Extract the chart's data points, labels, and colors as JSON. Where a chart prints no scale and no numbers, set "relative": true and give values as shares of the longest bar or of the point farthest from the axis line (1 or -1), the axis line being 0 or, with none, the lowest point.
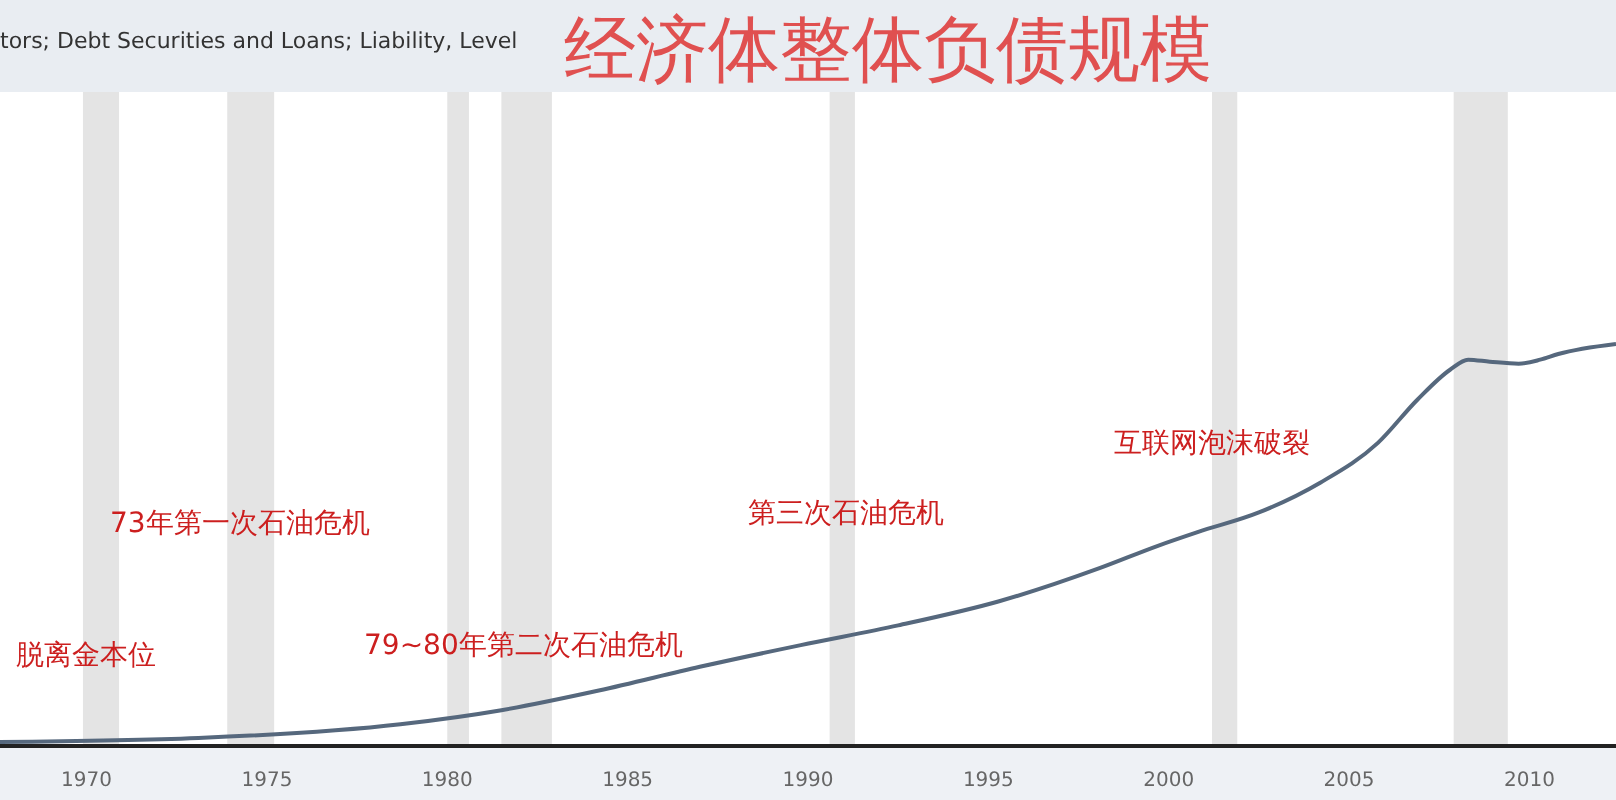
{
  "chart_data": {
    "type": "line",
    "title": "经济体整体负债规模",
    "subtitle": "tors; Debt Securities and Loans; Liability, Level",
    "relative": true,
    "x": [
      1967.6,
      1973.1,
      1978.7,
      1981.5,
      1984.2,
      1987.0,
      1989.8,
      1992.5,
      1995.3,
      1998.1,
      1999.7,
      2000.8,
      2002.5,
      2004.2,
      2005.8,
      2006.9,
      2007.8,
      2008.3,
      2008.9,
      2009.7,
      2010.3,
      2010.8,
      2012.4
    ],
    "series": [
      {
        "color": "#56687d",
        "values": [
          0.01,
          0.02,
          0.054,
          0.089,
          0.138,
          0.197,
          0.251,
          0.3,
          0.36,
          0.443,
          0.498,
          0.532,
          0.581,
          0.655,
          0.754,
          0.862,
          0.936,
          0.961,
          0.956,
          0.951,
          0.961,
          0.975,
          1.0
        ]
      }
    ],
    "xlim": [
      1967.6,
      2012.4
    ],
    "xticks": [
      1970,
      1975,
      1980,
      1985,
      1990,
      1995,
      2000,
      2005,
      2010
    ],
    "bands": [
      {
        "axis": "x",
        "from": 1969.9,
        "to": 1970.9,
        "color": "#e4e4e4"
      },
      {
        "axis": "x",
        "from": 1973.9,
        "to": 1975.2,
        "color": "#e4e4e4"
      },
      {
        "axis": "x",
        "from": 1980.0,
        "to": 1980.6,
        "color": "#e4e4e4"
      },
      {
        "axis": "x",
        "from": 1981.5,
        "to": 1982.9,
        "color": "#e4e4e4"
      },
      {
        "axis": "x",
        "from": 1990.6,
        "to": 1991.3,
        "color": "#e4e4e4"
      },
      {
        "axis": "x",
        "from": 2001.2,
        "to": 2001.9,
        "color": "#e4e4e4"
      },
      {
        "axis": "x",
        "from": 2007.9,
        "to": 2009.4,
        "color": "#e4e4e4"
      }
    ],
    "annotations": [
      "脱离金本位",
      "73年第一次石油危机",
      "79~80年第二次石油危机",
      "第三次石油危机",
      "互联网泡沫破裂"
    ],
    "marker": "none",
    "line_style": "solid"
  }
}
